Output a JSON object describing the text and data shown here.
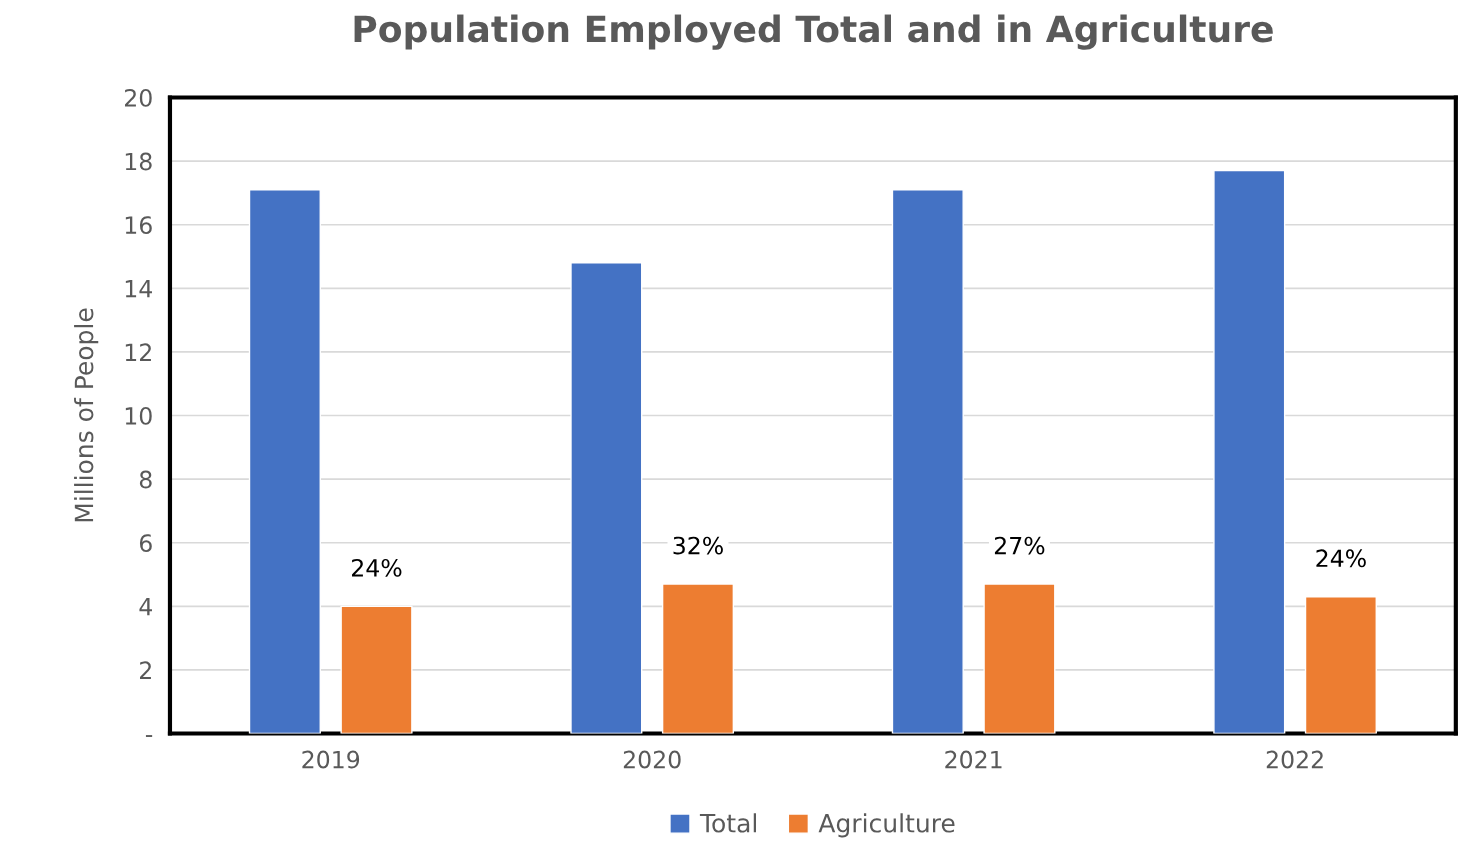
{
  "chart_data": {
    "type": "bar",
    "title": "Population Employed Total and in Agriculture",
    "ylabel": "Millions of People",
    "categories": [
      "2019",
      "2020",
      "2021",
      "2022"
    ],
    "series": [
      {
        "name": "Total",
        "color": "#4472c4",
        "values": [
          17.1,
          14.8,
          17.1,
          17.7
        ]
      },
      {
        "name": "Agriculture",
        "color": "#ed7d31",
        "values": [
          4.0,
          4.7,
          4.7,
          4.3
        ]
      }
    ],
    "annotations": [
      "24%",
      "32%",
      "27%",
      "24%"
    ],
    "ylim": [
      0,
      20
    ],
    "yticks": [
      {
        "value": 0,
        "label": "-"
      },
      2,
      4,
      6,
      8,
      10,
      12,
      14,
      16,
      18,
      20
    ],
    "grid": "y",
    "legend": "bottom"
  }
}
